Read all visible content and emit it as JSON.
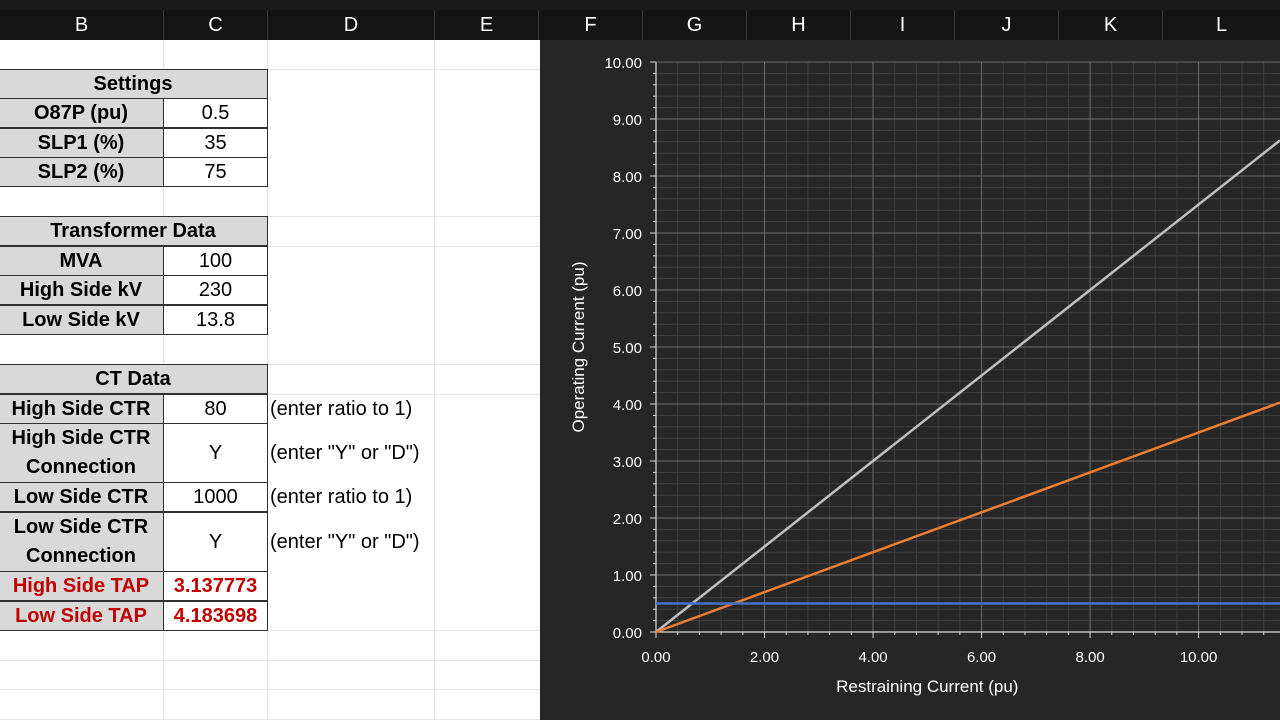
{
  "columns": [
    "B",
    "C",
    "D",
    "E",
    "F",
    "G",
    "H",
    "I",
    "J",
    "K",
    "L"
  ],
  "settings": {
    "header": "Settings",
    "rows": [
      {
        "label": "O87P (pu)",
        "value": "0.5"
      },
      {
        "label": "SLP1 (%)",
        "value": "35"
      },
      {
        "label": "SLP2 (%)",
        "value": "75"
      }
    ]
  },
  "transformer": {
    "header": "Transformer Data",
    "rows": [
      {
        "label": "MVA",
        "value": "100"
      },
      {
        "label": "High Side kV",
        "value": "230"
      },
      {
        "label": "Low Side kV",
        "value": "13.8"
      }
    ]
  },
  "ct": {
    "header": "CT Data",
    "rows": [
      {
        "label": "High Side CTR",
        "value": "80",
        "note": "(enter ratio to 1)"
      },
      {
        "label_line1": "High Side CTR",
        "label_line2": "Connection",
        "value": "Y",
        "note": "(enter \"Y\" or \"D\")"
      },
      {
        "label": "Low Side CTR",
        "value": "1000",
        "note": "(enter ratio to 1)"
      },
      {
        "label_line1": "Low Side CTR",
        "label_line2": "Connection",
        "value": "Y",
        "note": "(enter \"Y\" or \"D\")"
      },
      {
        "label": "High Side TAP",
        "value": "3.137773"
      },
      {
        "label": "Low Side TAP",
        "value": "4.183698"
      }
    ]
  },
  "colors": {
    "chart_bg": "#262626",
    "series_gray": "#bfbfbf",
    "series_orange": "#ed7d31",
    "series_blue": "#4472c4",
    "tap_red": "#c00000"
  },
  "chart_data": {
    "type": "line",
    "xlabel": "Restraining Current (pu)",
    "ylabel": "Operating Current (pu)",
    "xlim": [
      0,
      11.5
    ],
    "ylim": [
      0,
      10
    ],
    "xticks": [
      "0.00",
      "2.00",
      "4.00",
      "6.00",
      "8.00",
      "10.00"
    ],
    "yticks": [
      "0.00",
      "1.00",
      "2.00",
      "3.00",
      "4.00",
      "5.00",
      "6.00",
      "7.00",
      "8.00",
      "9.00",
      "10.00"
    ],
    "grid": true,
    "series": [
      {
        "color": "#bfbfbf",
        "points": [
          [
            0,
            0
          ],
          [
            11.5,
            8.625
          ]
        ]
      },
      {
        "color": "#ed7d31",
        "points": [
          [
            0,
            0
          ],
          [
            11.5,
            4.025
          ]
        ]
      },
      {
        "color": "#4472c4",
        "points": [
          [
            0,
            0.5
          ],
          [
            11.5,
            0.5
          ]
        ]
      }
    ]
  }
}
